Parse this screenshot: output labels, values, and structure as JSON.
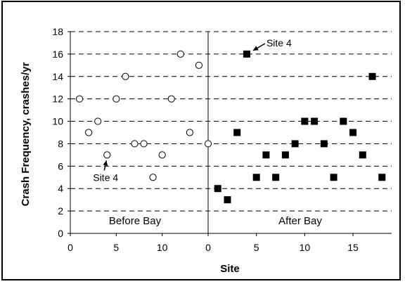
{
  "chart_data": {
    "type": "scatter",
    "xlabel": "Site",
    "ylabel": "Crash Frequency, crashes/yr",
    "ylim": [
      0,
      18
    ],
    "yticks": [
      0,
      2,
      4,
      6,
      8,
      10,
      12,
      14,
      16,
      18
    ],
    "grid": "horizontal dashed",
    "panels": [
      {
        "label": "Before Bay",
        "marker": "open circle",
        "xlim": [
          0,
          15
        ],
        "xticks": [
          0,
          5,
          10
        ],
        "points": [
          {
            "x": 1,
            "y": 12
          },
          {
            "x": 2,
            "y": 9
          },
          {
            "x": 3,
            "y": 10
          },
          {
            "x": 4,
            "y": 7
          },
          {
            "x": 5,
            "y": 12
          },
          {
            "x": 6,
            "y": 14
          },
          {
            "x": 7,
            "y": 8
          },
          {
            "x": 8,
            "y": 8
          },
          {
            "x": 9,
            "y": 5
          },
          {
            "x": 10,
            "y": 7
          },
          {
            "x": 11,
            "y": 12
          },
          {
            "x": 12,
            "y": 16
          },
          {
            "x": 13,
            "y": 9
          },
          {
            "x": 14,
            "y": 15
          },
          {
            "x": 15,
            "y": 8
          }
        ],
        "annotation": {
          "text": "Site 4",
          "x": 4,
          "y": 7
        }
      },
      {
        "label": "After Bay",
        "marker": "filled square",
        "xlim": [
          0,
          19
        ],
        "xticks": [
          0,
          5,
          10,
          15
        ],
        "points": [
          {
            "x": 1,
            "y": 4
          },
          {
            "x": 2,
            "y": 3
          },
          {
            "x": 3,
            "y": 9
          },
          {
            "x": 4,
            "y": 16
          },
          {
            "x": 5,
            "y": 5
          },
          {
            "x": 6,
            "y": 7
          },
          {
            "x": 7,
            "y": 5
          },
          {
            "x": 8,
            "y": 7
          },
          {
            "x": 9,
            "y": 8
          },
          {
            "x": 10,
            "y": 10
          },
          {
            "x": 11,
            "y": 10
          },
          {
            "x": 12,
            "y": 8
          },
          {
            "x": 13,
            "y": 5
          },
          {
            "x": 14,
            "y": 10
          },
          {
            "x": 15,
            "y": 9
          },
          {
            "x": 16,
            "y": 7
          },
          {
            "x": 17,
            "y": 14
          },
          {
            "x": 18,
            "y": 5
          }
        ],
        "annotation": {
          "text": "Site 4",
          "x": 4,
          "y": 16
        }
      }
    ]
  }
}
